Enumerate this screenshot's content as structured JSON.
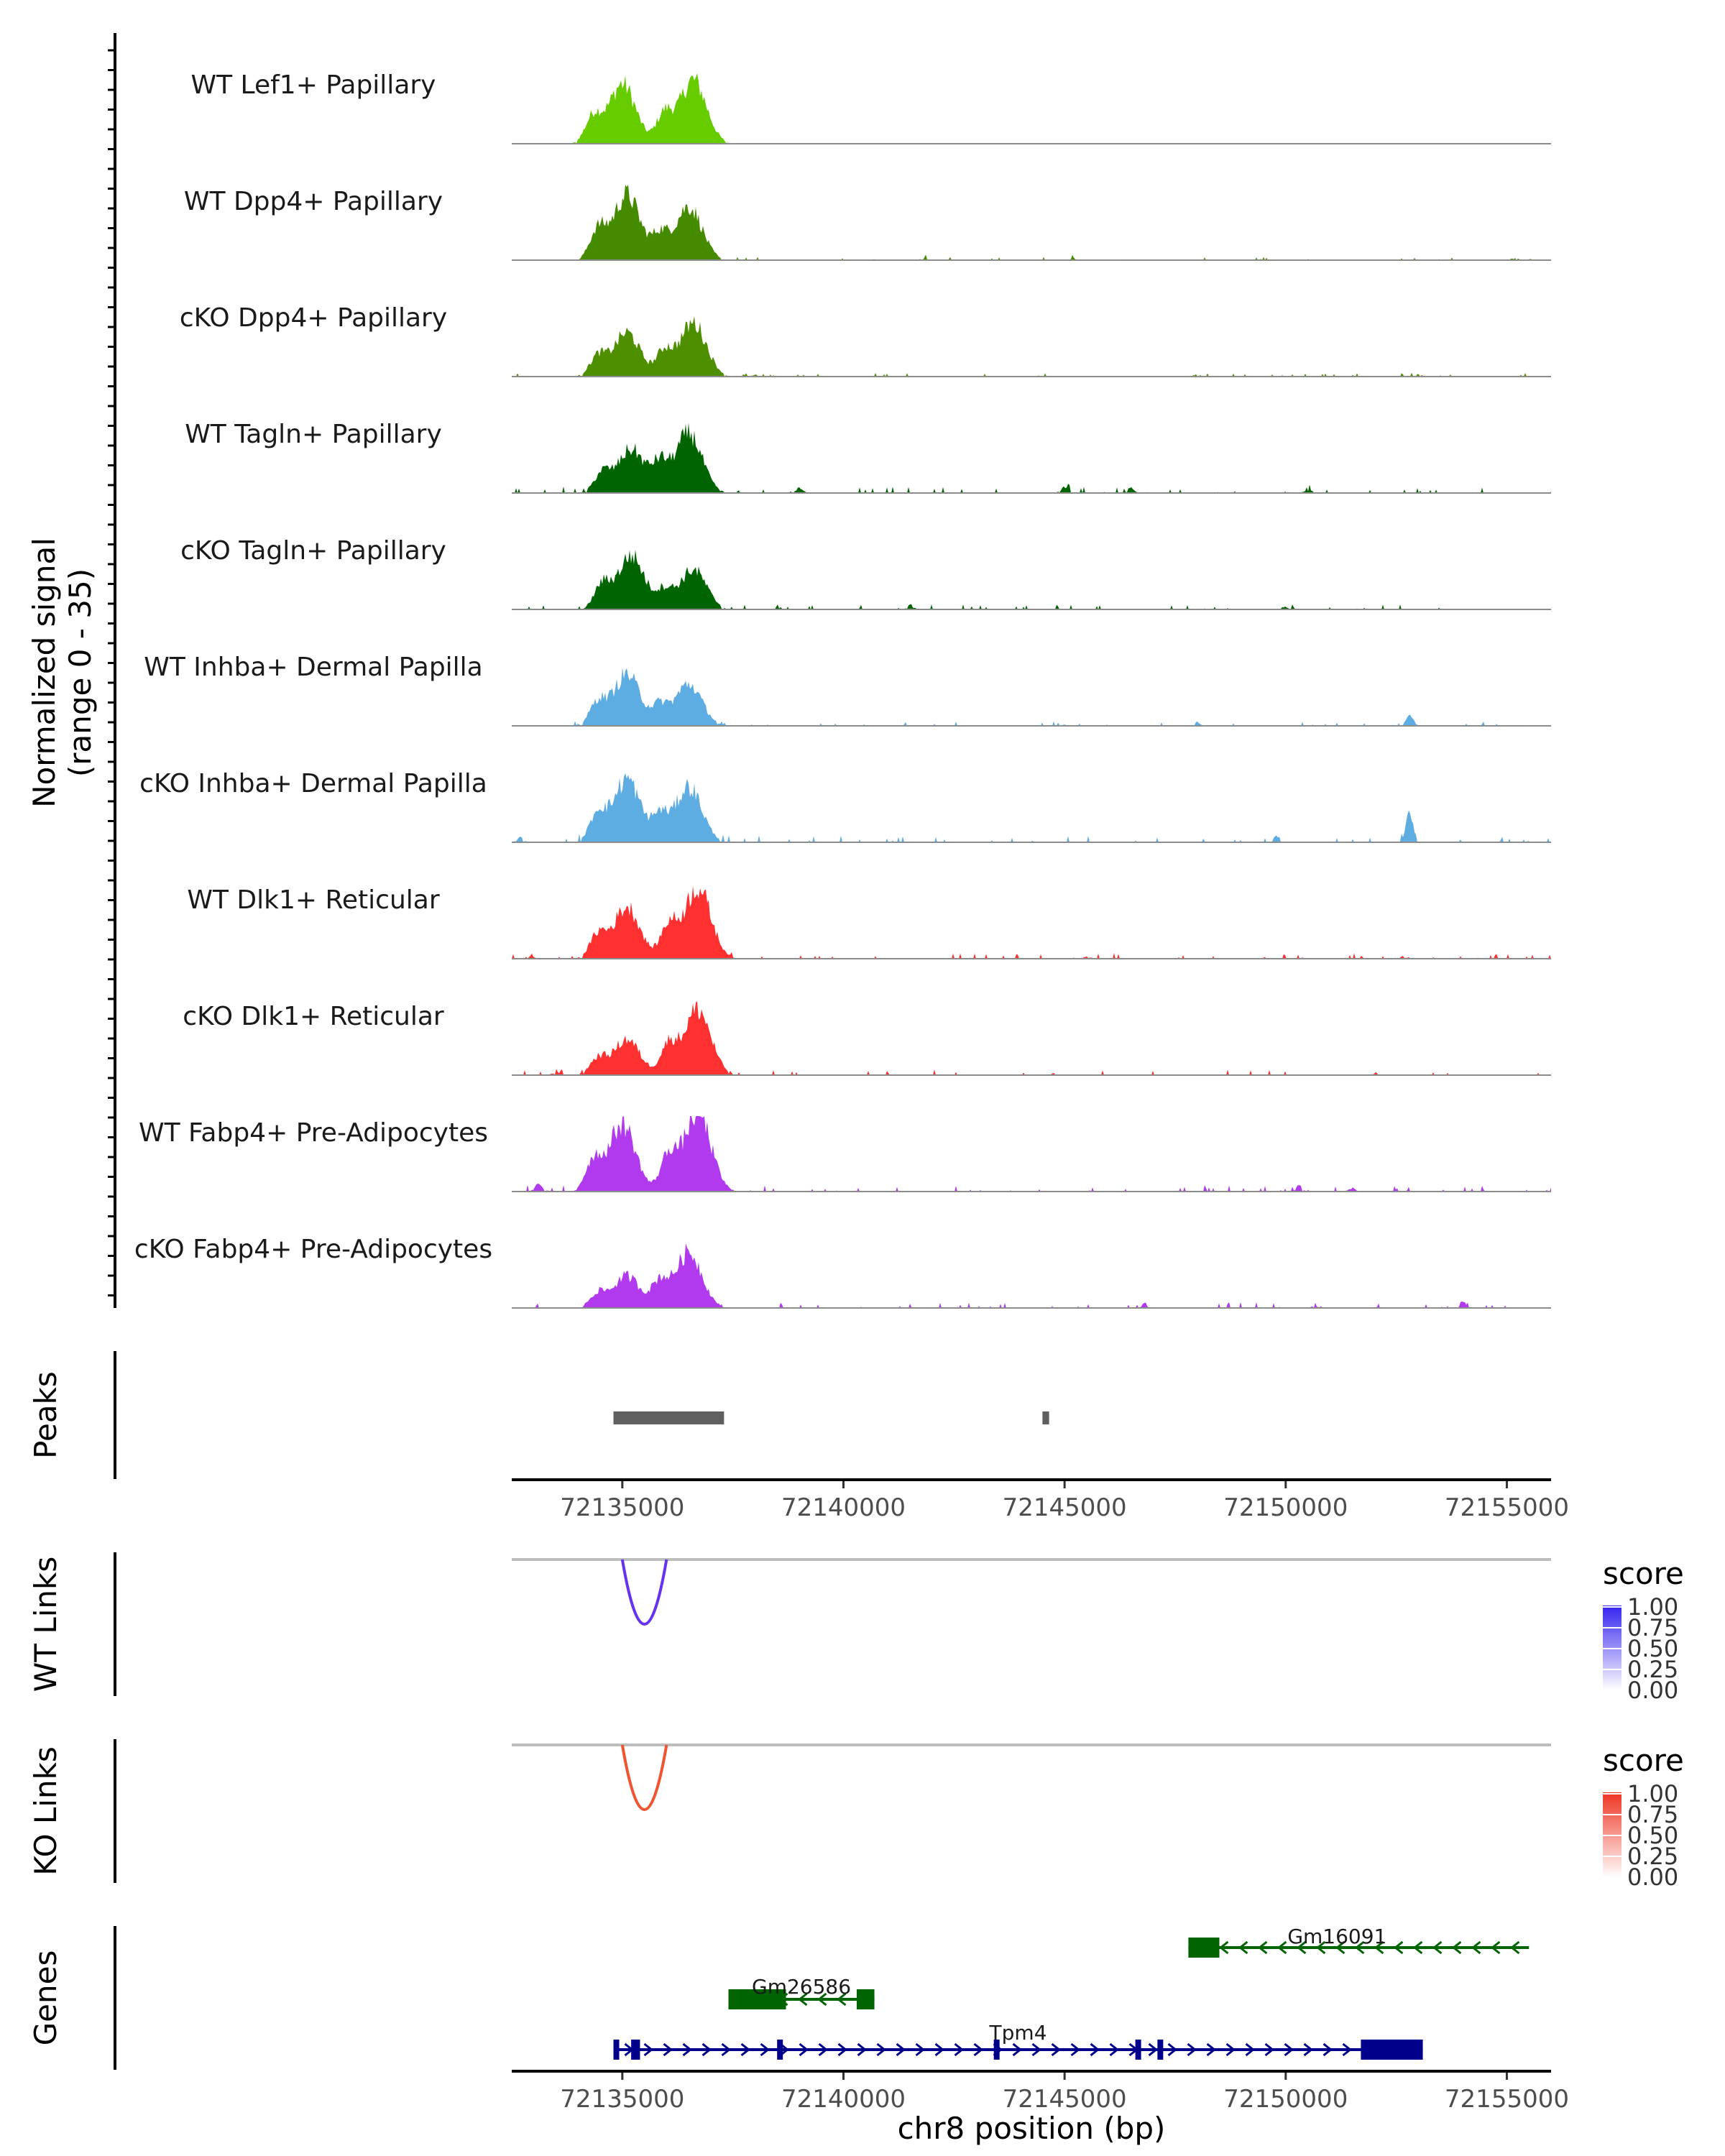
{
  "chart_data": {
    "type": "area",
    "genomic_region": {
      "chromosome": "chr8",
      "start": 72132500,
      "end": 72156000
    },
    "signal_ylabel": [
      "Normalized signal",
      "(range 0 - 35)"
    ],
    "signal_range": [
      0,
      35
    ],
    "tracks": [
      {
        "name": "WT Lef1+ Papillary",
        "color": "#66CC00",
        "peaks": [
          [
            72135000,
            30
          ],
          [
            72136600,
            32
          ]
        ],
        "background": [],
        "noise": 0.15
      },
      {
        "name": "WT Dpp4+ Papillary",
        "color": "#458B00",
        "peaks": [
          [
            72135100,
            33
          ],
          [
            72136500,
            27
          ]
        ],
        "background": [
          [
            72141800,
            2
          ],
          [
            72145200,
            1.5
          ],
          [
            72155200,
            1.5
          ]
        ],
        "noise": 0.5
      },
      {
        "name": "cKO Dpp4+ Papillary",
        "color": "#4E8F00",
        "peaks": [
          [
            72135100,
            22
          ],
          [
            72136600,
            27
          ]
        ],
        "background": [
          [
            72138000,
            1.5
          ],
          [
            72148000,
            1.5
          ],
          [
            72153000,
            1.5
          ]
        ],
        "noise": 0.6
      },
      {
        "name": "WT Tagln+ Papillary",
        "color": "#006400",
        "peaks": [
          [
            72135200,
            22
          ],
          [
            72136500,
            30
          ]
        ],
        "background": [
          [
            72139000,
            2.5
          ],
          [
            72145000,
            3
          ],
          [
            72146500,
            2.5
          ],
          [
            72150500,
            2
          ]
        ],
        "noise": 1.0
      },
      {
        "name": "cKO Tagln+ Papillary",
        "color": "#006400",
        "peaks": [
          [
            72135200,
            27
          ],
          [
            72136600,
            20
          ]
        ],
        "background": [
          [
            72138500,
            2
          ],
          [
            72141500,
            2.5
          ],
          [
            72150000,
            1.5
          ]
        ],
        "noise": 0.8
      },
      {
        "name": "WT Inhba+ Dermal Papilla",
        "color": "#5DADE2",
        "peaks": [
          [
            72135100,
            26
          ],
          [
            72136500,
            21
          ]
        ],
        "background": [
          [
            72152800,
            5
          ],
          [
            72145000,
            1.5
          ],
          [
            72148000,
            1.5
          ]
        ],
        "noise": 0.7
      },
      {
        "name": "cKO Inhba+ Dermal Papilla",
        "color": "#5DADE2",
        "peaks": [
          [
            72135100,
            32
          ],
          [
            72136500,
            28
          ]
        ],
        "background": [
          [
            72152800,
            14
          ],
          [
            72132700,
            2.5
          ],
          [
            72149800,
            3
          ]
        ],
        "noise": 1.1
      },
      {
        "name": "WT Dlk1+ Reticular",
        "color": "#FF3030",
        "peaks": [
          [
            72135100,
            26
          ],
          [
            72136700,
            36
          ]
        ],
        "background": [
          [
            72132900,
            2
          ],
          [
            72145500,
            1.5
          ],
          [
            72152700,
            2
          ]
        ],
        "noise": 0.9
      },
      {
        "name": "cKO Dlk1+ Reticular",
        "color": "#FF3030",
        "peaks": [
          [
            72135100,
            18
          ],
          [
            72136700,
            33
          ]
        ],
        "background": [
          [
            72133500,
            2
          ],
          [
            72144700,
            1.5
          ],
          [
            72152000,
            1.5
          ]
        ],
        "noise": 0.9
      },
      {
        "name": "WT Fabp4+ Pre-Adipocytes",
        "color": "#B23AEE",
        "peaks": [
          [
            72135000,
            34
          ],
          [
            72136700,
            40
          ]
        ],
        "background": [
          [
            72133100,
            4
          ],
          [
            72150300,
            3
          ],
          [
            72151500,
            2
          ]
        ],
        "noise": 1.0
      },
      {
        "name": "cKO Fabp4+ Pre-Adipocytes",
        "color": "#B23AEE",
        "peaks": [
          [
            72135100,
            16
          ],
          [
            72136500,
            28
          ]
        ],
        "background": [
          [
            72154000,
            3
          ],
          [
            72146800,
            2.5
          ],
          [
            72150700,
            2
          ]
        ],
        "noise": 0.9
      }
    ],
    "peaks_track": {
      "label": "Peaks",
      "intervals": [
        [
          72134800,
          72137300
        ],
        [
          72144500,
          72144650
        ]
      ]
    },
    "x_axis": {
      "ticks": [
        72135000,
        72140000,
        72145000,
        72150000,
        72155000
      ],
      "tick_labels": [
        "72135000",
        "72140000",
        "72145000",
        "72150000",
        "72155000"
      ],
      "title": "chr8 position (bp)"
    },
    "links": [
      {
        "label": "WT Links",
        "color": "#6633EE",
        "from": 72135000,
        "to": 72136000,
        "score": 0.85,
        "legend": {
          "title": "score",
          "ticks": [
            "1.00",
            "0.75",
            "0.50",
            "0.25",
            "0.00"
          ],
          "color_high": "#3322EE",
          "color_low": "#FFFFFF"
        }
      },
      {
        "label": "KO Links",
        "color": "#EE5533",
        "from": 72135000,
        "to": 72136000,
        "score": 0.85,
        "legend": {
          "title": "score",
          "ticks": [
            "1.00",
            "0.75",
            "0.50",
            "0.25",
            "0.00"
          ],
          "color_high": "#EE3322",
          "color_low": "#FFFFFF"
        }
      }
    ],
    "genes_label": "Genes",
    "genes": [
      {
        "name": "Gm16091",
        "color": "#006400",
        "strand": "-",
        "start": 72147800,
        "end": 72155500,
        "exons": [
          [
            72147800,
            72148500
          ]
        ]
      },
      {
        "name": "Gm26586",
        "color": "#006400",
        "strand": "-",
        "start": 72137400,
        "end": 72140700,
        "exons": [
          [
            72137400,
            72138700
          ],
          [
            72140300,
            72140700
          ]
        ]
      },
      {
        "name": "Tpm4",
        "color": "#00008B",
        "strand": "+",
        "start": 72134800,
        "end": 72153100,
        "exons": [
          [
            72134800,
            72134900
          ],
          [
            72135200,
            72135400
          ],
          [
            72138500,
            72138600
          ],
          [
            72143400,
            72143500
          ],
          [
            72146600,
            72146700
          ],
          [
            72147100,
            72147200
          ],
          [
            72151700,
            72153100
          ]
        ]
      }
    ]
  }
}
